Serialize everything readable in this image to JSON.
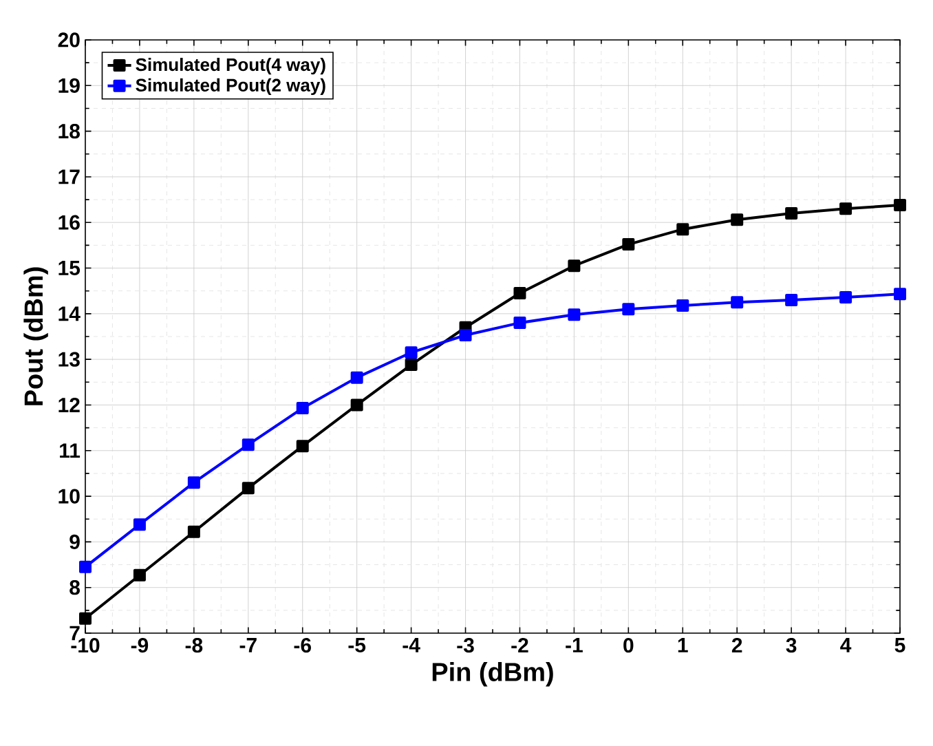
{
  "chart_data": {
    "type": "line",
    "xlabel": "Pin (dBm)",
    "ylabel": "Pout (dBm)",
    "x": [
      -10,
      -9,
      -8,
      -7,
      -6,
      -5,
      -4,
      -3,
      -2,
      -1,
      0,
      1,
      2,
      3,
      4,
      5
    ],
    "series": [
      {
        "name": "Simulated Pout(4 way)",
        "color": "#000000",
        "values": [
          7.32,
          8.27,
          9.22,
          10.18,
          11.1,
          12.0,
          12.88,
          13.7,
          14.45,
          15.05,
          15.52,
          15.85,
          16.06,
          16.2,
          16.3,
          16.38
        ]
      },
      {
        "name": "Simulated Pout(2 way)",
        "color": "#0000ff",
        "values": [
          8.45,
          9.38,
          10.3,
          11.13,
          11.93,
          12.6,
          13.15,
          13.53,
          13.8,
          13.98,
          14.1,
          14.18,
          14.25,
          14.3,
          14.36,
          14.43
        ]
      }
    ],
    "xlim": [
      -10,
      5
    ],
    "ylim": [
      7,
      20
    ],
    "xticks": [
      -10,
      -9,
      -8,
      -7,
      -6,
      -5,
      -4,
      -3,
      -2,
      -1,
      0,
      1,
      2,
      3,
      4,
      5
    ],
    "yticks": [
      7,
      8,
      9,
      10,
      11,
      12,
      13,
      14,
      15,
      16,
      17,
      18,
      19,
      20
    ],
    "grid": true,
    "legend": "top left",
    "marker": "square",
    "line_style": "solid"
  }
}
